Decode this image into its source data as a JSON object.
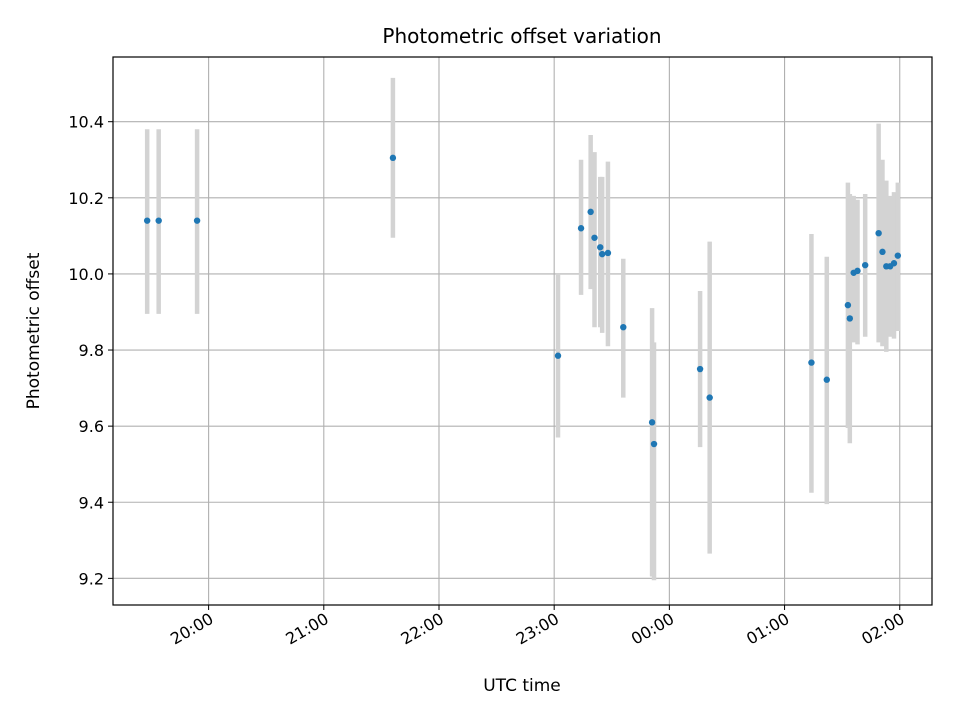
{
  "chart_data": {
    "type": "scatter",
    "title": "Photometric offset variation",
    "xlabel": "UTC time",
    "ylabel": "Photometric offset",
    "x_tick_labels": [
      "20:00",
      "21:00",
      "22:00",
      "23:00",
      "00:00",
      "01:00",
      "02:00"
    ],
    "x_tick_hours": [
      20,
      21,
      22,
      23,
      24,
      25,
      26
    ],
    "y_ticks": [
      9.2,
      9.4,
      9.6,
      9.8,
      10.0,
      10.2,
      10.4
    ],
    "y_tick_labels": [
      "9.2",
      "9.4",
      "9.6",
      "9.8",
      "10.0",
      "10.2",
      "10.4"
    ],
    "xlim": [
      19.17,
      26.28
    ],
    "ylim": [
      9.13,
      10.57
    ],
    "grid": true,
    "colors": {
      "marker": "#1f77b4",
      "errorbar": "#d3d3d3",
      "grid": "#b0b0b0"
    },
    "series": [
      {
        "t": [
          "19:28",
          "19:34",
          "19:54",
          "21:36",
          "23:02",
          "23:14",
          "23:19",
          "23:21",
          "23:24",
          "23:25",
          "23:28",
          "23:36",
          "23:51",
          "23:52",
          "00:16",
          "00:21",
          "01:14",
          "01:22",
          "01:33",
          "01:34",
          "01:36",
          "01:38",
          "01:42",
          "01:49",
          "01:51",
          "01:53",
          "01:55",
          "01:57",
          "01:59"
        ],
        "y": [
          10.14,
          10.14,
          10.14,
          10.305,
          9.785,
          10.12,
          10.163,
          10.095,
          10.07,
          10.052,
          10.055,
          9.86,
          9.61,
          9.553,
          9.75,
          9.675,
          9.767,
          9.722,
          9.918,
          9.883,
          10.003,
          10.008,
          10.023,
          10.107,
          10.058,
          10.02,
          10.02,
          10.028,
          10.048
        ],
        "err_low": [
          9.895,
          9.895,
          9.895,
          10.095,
          9.57,
          9.945,
          9.96,
          9.86,
          9.86,
          9.845,
          9.81,
          9.675,
          9.205,
          9.195,
          9.545,
          9.265,
          9.425,
          9.395,
          9.595,
          9.555,
          9.82,
          9.815,
          9.835,
          9.82,
          9.81,
          9.795,
          9.835,
          9.83,
          9.85
        ],
        "err_high": [
          10.38,
          10.38,
          10.38,
          10.515,
          10.0,
          10.3,
          10.365,
          10.32,
          10.255,
          10.255,
          10.295,
          10.04,
          9.91,
          9.82,
          9.955,
          10.085,
          10.105,
          10.045,
          10.24,
          10.21,
          10.205,
          10.195,
          10.21,
          10.395,
          10.3,
          10.245,
          10.205,
          10.215,
          10.24
        ]
      }
    ]
  }
}
